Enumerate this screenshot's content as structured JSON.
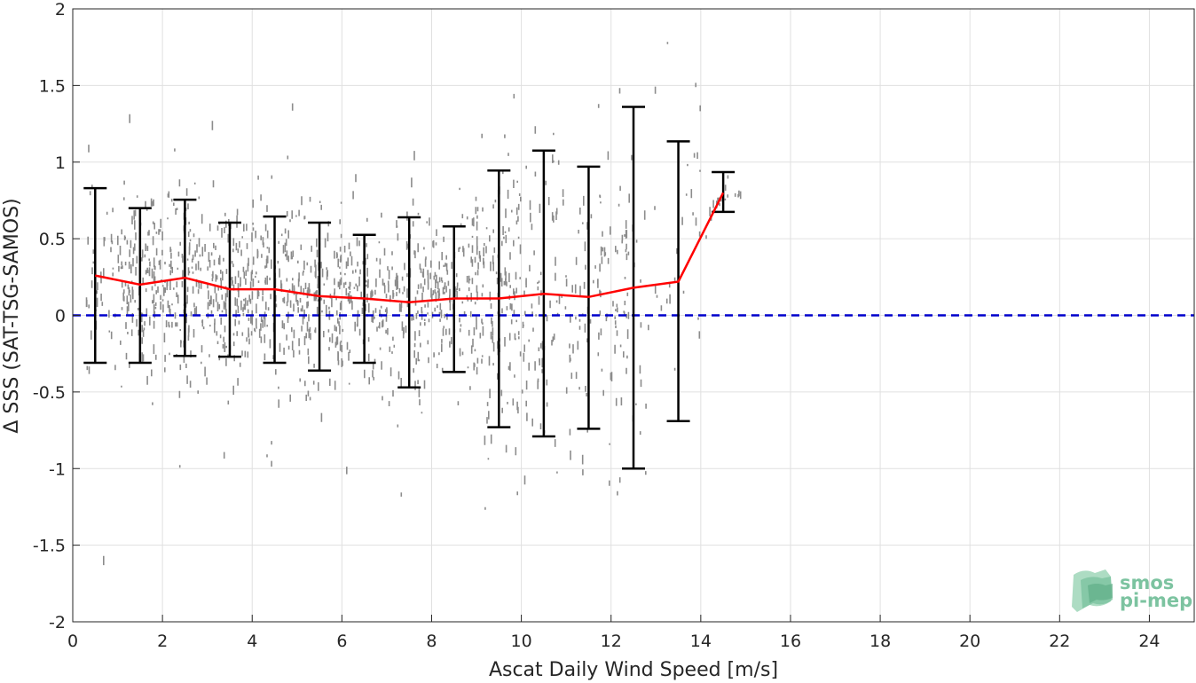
{
  "chart_data": {
    "type": "scatter",
    "xlabel": "Ascat Daily Wind Speed [m/s]",
    "ylabel": "Δ SSS (SAT-TSG-SAMOS)",
    "xlim": [
      0,
      25
    ],
    "ylim": [
      -2,
      2
    ],
    "xticks": [
      0,
      2,
      4,
      6,
      8,
      10,
      12,
      14,
      16,
      18,
      20,
      22,
      24
    ],
    "yticks": [
      -2,
      -1.5,
      -1,
      -0.5,
      0,
      0.5,
      1,
      1.5,
      2
    ],
    "grid": true,
    "series": [
      {
        "kind": "binned_mean",
        "color": "#ff0000",
        "x": [
          0.5,
          1.5,
          2.5,
          3.5,
          4.5,
          5.5,
          6.5,
          7.5,
          8.5,
          9.5,
          10.5,
          11.5,
          12.5,
          13.5,
          14.5
        ],
        "y": [
          0.26,
          0.2,
          0.245,
          0.17,
          0.17,
          0.125,
          0.11,
          0.085,
          0.11,
          0.11,
          0.14,
          0.12,
          0.18,
          0.22,
          0.8
        ]
      },
      {
        "kind": "error_bars",
        "color": "#000000",
        "x": [
          0.5,
          1.5,
          2.5,
          3.5,
          4.5,
          5.5,
          6.5,
          7.5,
          8.5,
          9.5,
          10.5,
          11.5,
          12.5,
          13.5,
          14.5
        ],
        "lower": [
          -0.31,
          -0.31,
          -0.265,
          -0.27,
          -0.31,
          -0.36,
          -0.31,
          -0.47,
          -0.37,
          -0.73,
          -0.79,
          -0.74,
          -1.0,
          -0.69,
          0.675
        ],
        "upper": [
          0.83,
          0.7,
          0.755,
          0.605,
          0.645,
          0.605,
          0.525,
          0.64,
          0.58,
          0.945,
          1.075,
          0.97,
          1.36,
          1.135,
          0.935
        ]
      },
      {
        "kind": "reference_line",
        "color": "#0000cc",
        "style": "dashed",
        "y": 0
      },
      {
        "kind": "scatter_cloud",
        "color": "#808080"
      }
    ]
  },
  "logo": {
    "line1": "smos",
    "line2": "pi-mep",
    "color": "#7cc3a0"
  }
}
